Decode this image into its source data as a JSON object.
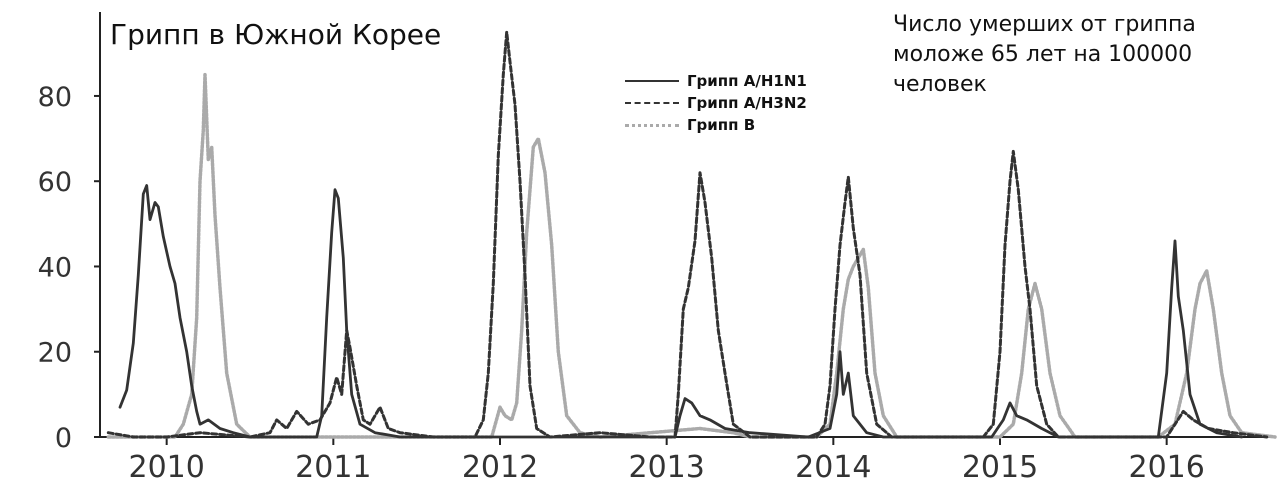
{
  "chart_data": {
    "type": "line",
    "title": "Грипп в Южной Корее",
    "subtitle": "Число умерших от гриппа\nмоложе 65 лет на 100000\nчеловек",
    "xlabel": "",
    "ylabel": "",
    "ylim": [
      0,
      95
    ],
    "xlim": [
      2009.6,
      2016.65
    ],
    "yticks": [
      0,
      20,
      40,
      60,
      80
    ],
    "xticks": [
      2010,
      2011,
      2012,
      2013,
      2014,
      2015,
      2016
    ],
    "legend_position": "top-center",
    "grid": false,
    "series": [
      {
        "name": "Грипп A/H1N1",
        "color": "#333333",
        "style": "solid",
        "points": [
          [
            2009.72,
            7
          ],
          [
            2009.76,
            11
          ],
          [
            2009.8,
            22
          ],
          [
            2009.83,
            38
          ],
          [
            2009.86,
            57
          ],
          [
            2009.88,
            59
          ],
          [
            2009.9,
            51
          ],
          [
            2009.93,
            55
          ],
          [
            2009.95,
            54
          ],
          [
            2009.98,
            47
          ],
          [
            2010.02,
            40
          ],
          [
            2010.05,
            36
          ],
          [
            2010.08,
            28
          ],
          [
            2010.12,
            20
          ],
          [
            2010.15,
            12
          ],
          [
            2010.18,
            6
          ],
          [
            2010.2,
            3
          ],
          [
            2010.25,
            4
          ],
          [
            2010.32,
            2
          ],
          [
            2010.4,
            1
          ],
          [
            2010.5,
            0
          ],
          [
            2010.9,
            0
          ],
          [
            2010.93,
            5
          ],
          [
            2010.96,
            28
          ],
          [
            2010.99,
            48
          ],
          [
            2011.01,
            58
          ],
          [
            2011.03,
            56
          ],
          [
            2011.06,
            42
          ],
          [
            2011.08,
            25
          ],
          [
            2011.11,
            10
          ],
          [
            2011.16,
            3
          ],
          [
            2011.25,
            1
          ],
          [
            2011.4,
            0
          ],
          [
            2013.05,
            0
          ],
          [
            2013.08,
            5
          ],
          [
            2013.11,
            9
          ],
          [
            2013.15,
            8
          ],
          [
            2013.2,
            5
          ],
          [
            2013.26,
            4
          ],
          [
            2013.35,
            2
          ],
          [
            2013.5,
            1
          ],
          [
            2013.85,
            0
          ],
          [
            2013.98,
            2
          ],
          [
            2014.02,
            10
          ],
          [
            2014.04,
            20
          ],
          [
            2014.06,
            10
          ],
          [
            2014.09,
            15
          ],
          [
            2014.12,
            5
          ],
          [
            2014.2,
            1
          ],
          [
            2014.3,
            0
          ],
          [
            2014.95,
            0
          ],
          [
            2015.02,
            4
          ],
          [
            2015.06,
            8
          ],
          [
            2015.1,
            5
          ],
          [
            2015.16,
            4
          ],
          [
            2015.25,
            2
          ],
          [
            2015.35,
            0
          ],
          [
            2015.95,
            0
          ],
          [
            2016.0,
            15
          ],
          [
            2016.03,
            35
          ],
          [
            2016.05,
            46
          ],
          [
            2016.07,
            33
          ],
          [
            2016.1,
            25
          ],
          [
            2016.14,
            10
          ],
          [
            2016.2,
            3
          ],
          [
            2016.3,
            1
          ],
          [
            2016.45,
            0
          ]
        ]
      },
      {
        "name": "Грипп A/H3N2",
        "color": "#333333",
        "style": "dashed",
        "points": [
          [
            2009.65,
            1
          ],
          [
            2009.8,
            0
          ],
          [
            2010.0,
            0
          ],
          [
            2010.2,
            1
          ],
          [
            2010.5,
            0
          ],
          [
            2010.62,
            1
          ],
          [
            2010.66,
            4
          ],
          [
            2010.72,
            2
          ],
          [
            2010.78,
            6
          ],
          [
            2010.85,
            3
          ],
          [
            2010.92,
            4
          ],
          [
            2010.98,
            8
          ],
          [
            2011.02,
            14
          ],
          [
            2011.05,
            10
          ],
          [
            2011.08,
            25
          ],
          [
            2011.1,
            21
          ],
          [
            2011.14,
            12
          ],
          [
            2011.18,
            4
          ],
          [
            2011.22,
            3
          ],
          [
            2011.28,
            7
          ],
          [
            2011.33,
            2
          ],
          [
            2011.4,
            1
          ],
          [
            2011.6,
            0
          ],
          [
            2011.85,
            0
          ],
          [
            2011.9,
            4
          ],
          [
            2011.93,
            15
          ],
          [
            2011.96,
            36
          ],
          [
            2011.99,
            66
          ],
          [
            2012.02,
            85
          ],
          [
            2012.04,
            95
          ],
          [
            2012.06,
            88
          ],
          [
            2012.09,
            78
          ],
          [
            2012.12,
            60
          ],
          [
            2012.15,
            38
          ],
          [
            2012.18,
            12
          ],
          [
            2012.22,
            2
          ],
          [
            2012.3,
            0
          ],
          [
            2012.6,
            1
          ],
          [
            2012.9,
            0
          ],
          [
            2013.05,
            0
          ],
          [
            2013.07,
            10
          ],
          [
            2013.1,
            30
          ],
          [
            2013.13,
            35
          ],
          [
            2013.17,
            46
          ],
          [
            2013.2,
            62
          ],
          [
            2013.23,
            55
          ],
          [
            2013.27,
            42
          ],
          [
            2013.31,
            25
          ],
          [
            2013.35,
            15
          ],
          [
            2013.4,
            3
          ],
          [
            2013.5,
            0
          ],
          [
            2013.9,
            0
          ],
          [
            2013.95,
            3
          ],
          [
            2013.98,
            12
          ],
          [
            2014.01,
            30
          ],
          [
            2014.04,
            45
          ],
          [
            2014.07,
            55
          ],
          [
            2014.09,
            61
          ],
          [
            2014.12,
            49
          ],
          [
            2014.16,
            38
          ],
          [
            2014.2,
            15
          ],
          [
            2014.26,
            3
          ],
          [
            2014.35,
            0
          ],
          [
            2014.9,
            0
          ],
          [
            2014.96,
            3
          ],
          [
            2015.0,
            20
          ],
          [
            2015.03,
            45
          ],
          [
            2015.06,
            60
          ],
          [
            2015.08,
            67
          ],
          [
            2015.11,
            58
          ],
          [
            2015.15,
            40
          ],
          [
            2015.18,
            30
          ],
          [
            2015.22,
            12
          ],
          [
            2015.28,
            3
          ],
          [
            2015.35,
            0
          ],
          [
            2016.0,
            0
          ],
          [
            2016.05,
            3
          ],
          [
            2016.1,
            6
          ],
          [
            2016.16,
            4
          ],
          [
            2016.25,
            2
          ],
          [
            2016.4,
            1
          ],
          [
            2016.6,
            0
          ]
        ]
      },
      {
        "name": "Грипп B",
        "color": "#aaaaaa",
        "style": "dotted",
        "points": [
          [
            2009.65,
            0
          ],
          [
            2010.05,
            0
          ],
          [
            2010.1,
            3
          ],
          [
            2010.15,
            10
          ],
          [
            2010.18,
            28
          ],
          [
            2010.2,
            60
          ],
          [
            2010.22,
            72
          ],
          [
            2010.23,
            85
          ],
          [
            2010.25,
            65
          ],
          [
            2010.27,
            68
          ],
          [
            2010.29,
            52
          ],
          [
            2010.32,
            35
          ],
          [
            2010.36,
            15
          ],
          [
            2010.42,
            3
          ],
          [
            2010.5,
            0
          ],
          [
            2011.3,
            0
          ],
          [
            2011.95,
            0
          ],
          [
            2012.0,
            7
          ],
          [
            2012.03,
            5
          ],
          [
            2012.07,
            4
          ],
          [
            2012.1,
            8
          ],
          [
            2012.13,
            25
          ],
          [
            2012.16,
            48
          ],
          [
            2012.2,
            68
          ],
          [
            2012.23,
            70
          ],
          [
            2012.27,
            62
          ],
          [
            2012.31,
            45
          ],
          [
            2012.35,
            20
          ],
          [
            2012.4,
            5
          ],
          [
            2012.48,
            1
          ],
          [
            2012.6,
            0
          ],
          [
            2013.2,
            2
          ],
          [
            2013.4,
            1
          ],
          [
            2013.5,
            0
          ],
          [
            2013.9,
            0
          ],
          [
            2013.98,
            3
          ],
          [
            2014.02,
            15
          ],
          [
            2014.06,
            30
          ],
          [
            2014.09,
            37
          ],
          [
            2014.12,
            40
          ],
          [
            2014.15,
            42
          ],
          [
            2014.18,
            44
          ],
          [
            2014.21,
            35
          ],
          [
            2014.25,
            15
          ],
          [
            2014.3,
            5
          ],
          [
            2014.38,
            0
          ],
          [
            2015.0,
            0
          ],
          [
            2015.08,
            3
          ],
          [
            2015.13,
            15
          ],
          [
            2015.17,
            30
          ],
          [
            2015.21,
            36
          ],
          [
            2015.25,
            30
          ],
          [
            2015.3,
            15
          ],
          [
            2015.36,
            5
          ],
          [
            2015.45,
            0
          ],
          [
            2015.95,
            0
          ],
          [
            2016.05,
            3
          ],
          [
            2016.12,
            15
          ],
          [
            2016.17,
            30
          ],
          [
            2016.2,
            36
          ],
          [
            2016.24,
            39
          ],
          [
            2016.28,
            30
          ],
          [
            2016.33,
            15
          ],
          [
            2016.38,
            5
          ],
          [
            2016.45,
            1
          ],
          [
            2016.65,
            0
          ]
        ]
      }
    ]
  }
}
